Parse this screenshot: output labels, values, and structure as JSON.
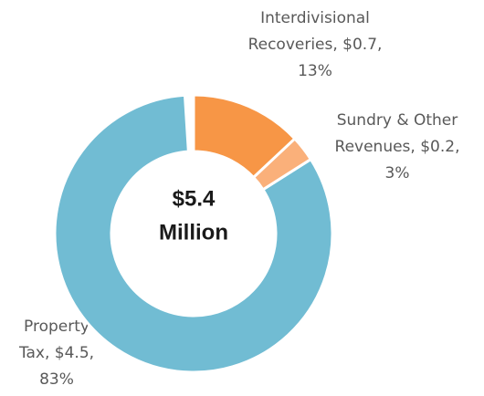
{
  "chart_data": {
    "type": "donut",
    "categories": [
      "Interdivisional Recoveries",
      "Sundry & Other Revenues",
      "Property Tax"
    ],
    "values": [
      13,
      3,
      83
    ],
    "labels": [
      [
        "Interdivisional",
        "Recoveries, $0.7,",
        "13%"
      ],
      [
        "Sundry & Other",
        "Revenues, $0.2,",
        "3%"
      ],
      [
        "Property",
        "Tax, $4.5,",
        "83%"
      ]
    ],
    "colors": [
      "#f79646",
      "#fab07a",
      "#71bcd3"
    ],
    "center_text": [
      "$5.4",
      "Million"
    ]
  }
}
